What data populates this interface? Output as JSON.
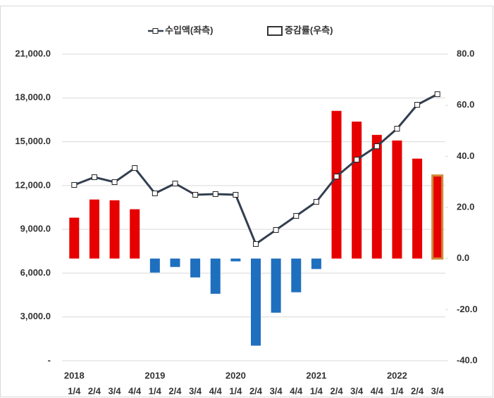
{
  "chart_data": {
    "type": "bar-line",
    "categories": [
      "1/4",
      "2/4",
      "3/4",
      "4/4",
      "1/4",
      "2/4",
      "3/4",
      "4/4",
      "1/4",
      "2/4",
      "3/4",
      "4/4",
      "1/4",
      "2/4",
      "3/4",
      "4/4",
      "1/4",
      "2/4",
      "3/4"
    ],
    "years": [
      "2018",
      null,
      null,
      null,
      "2019",
      null,
      null,
      null,
      "2020",
      null,
      null,
      null,
      "2021",
      null,
      null,
      null,
      "2022",
      null,
      null
    ],
    "series": [
      {
        "name": "수입액(좌측)",
        "type": "line",
        "axis": "y",
        "color": "#333f50",
        "values": [
          12041,
          12571,
          12234,
          13197,
          11463,
          12138,
          11367,
          11415,
          11367,
          7995,
          8959,
          9922,
          10885,
          12619,
          13775,
          14690,
          15894,
          17532,
          18255
        ]
      },
      {
        "name": "증감률(우측)",
        "type": "bar",
        "axis": "y2",
        "colors": [
          "#e60000",
          "#e60000",
          "#e60000",
          "#e60000",
          "#1f6fbf",
          "#1f6fbf",
          "#1f6fbf",
          "#1f6fbf",
          "#1f6fbf",
          "#1f6fbf",
          "#1f6fbf",
          "#1f6fbf",
          "#1f6fbf",
          "#e60000",
          "#e60000",
          "#e60000",
          "#e60000",
          "#e60000",
          "#e60000"
        ],
        "outline": [
          null,
          null,
          null,
          null,
          null,
          null,
          null,
          null,
          null,
          null,
          null,
          null,
          null,
          null,
          null,
          null,
          null,
          null,
          "#d08a3a"
        ],
        "values": [
          16.0,
          23.1,
          22.8,
          19.3,
          -5.5,
          -3.3,
          -7.4,
          -13.8,
          -1.1,
          -34.1,
          -21.2,
          -13.2,
          -4.1,
          57.8,
          53.6,
          48.4,
          46.2,
          39.1,
          32.5
        ]
      }
    ],
    "ylim": [
      0,
      21000
    ],
    "yticks": [
      {
        "value": 0,
        "label": "-"
      },
      {
        "value": 3000,
        "label": "3,000.0"
      },
      {
        "value": 6000,
        "label": "6,000.0"
      },
      {
        "value": 9000,
        "label": "9,000.0"
      },
      {
        "value": 12000,
        "label": "12,000.0"
      },
      {
        "value": 15000,
        "label": "15,000.0"
      },
      {
        "value": 18000,
        "label": "18,000.0"
      },
      {
        "value": 21000,
        "label": "21,000.0"
      }
    ],
    "y2lim": [
      -40,
      80
    ],
    "y2ticks": [
      {
        "value": -40,
        "label": "-40.0"
      },
      {
        "value": -20,
        "label": "-20.0"
      },
      {
        "value": 0,
        "label": "0.0"
      },
      {
        "value": 20,
        "label": "20.0"
      },
      {
        "value": 40,
        "label": "40.0"
      },
      {
        "value": 60,
        "label": "60.0"
      },
      {
        "value": 80,
        "label": "80.0"
      }
    ],
    "grid": true,
    "legend": "top"
  }
}
